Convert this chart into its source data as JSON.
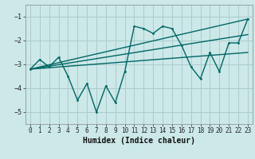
{
  "xlabel": "Humidex (Indice chaleur)",
  "background_color": "#cce8e8",
  "grid_color": "#aacccc",
  "line_color": "#006666",
  "xlim": [
    -0.5,
    23.5
  ],
  "ylim": [
    -5.5,
    -0.5
  ],
  "yticks": [
    -5,
    -4,
    -3,
    -2,
    -1
  ],
  "xticks": [
    0,
    1,
    2,
    3,
    4,
    5,
    6,
    7,
    8,
    9,
    10,
    11,
    12,
    13,
    14,
    15,
    16,
    17,
    18,
    19,
    20,
    21,
    22,
    23
  ],
  "main_x": [
    0,
    1,
    2,
    3,
    4,
    5,
    6,
    7,
    8,
    9,
    10,
    11,
    12,
    13,
    14,
    15,
    16,
    17,
    18,
    19,
    20,
    21,
    22,
    23
  ],
  "main_y": [
    -3.2,
    -2.8,
    -3.1,
    -2.7,
    -3.5,
    -4.5,
    -3.8,
    -5.0,
    -3.9,
    -4.6,
    -3.3,
    -1.4,
    -1.5,
    -1.7,
    -1.4,
    -1.5,
    -2.2,
    -3.1,
    -3.6,
    -2.5,
    -3.3,
    -2.1,
    -2.1,
    -1.1
  ],
  "line1_x": [
    0,
    23
  ],
  "line1_y": [
    -3.2,
    -1.1
  ],
  "line2_x": [
    0,
    23
  ],
  "line2_y": [
    -3.2,
    -2.5
  ],
  "line3_x": [
    0,
    23
  ],
  "line3_y": [
    -3.2,
    -1.75
  ]
}
